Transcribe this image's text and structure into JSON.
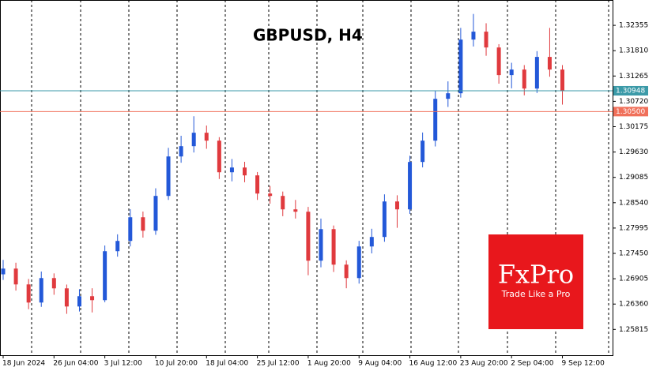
{
  "chart_data": {
    "type": "candlestick",
    "title": "GBPUSD, H4",
    "logo": {
      "name": "FxPro",
      "tagline": "Trade Like a Pro"
    },
    "up_color": "#2358d8",
    "down_color": "#e03a3e",
    "ylim": [
      1.2526,
      1.329
    ],
    "yticks": [
      1.25815,
      {
        "value": 1.2636,
        "label": "1.26360"
      },
      1.26905,
      {
        "value": 1.2745,
        "label": "1.27450"
      },
      1.27995,
      {
        "value": 1.2854,
        "label": "1.28540"
      },
      1.29085,
      {
        "value": 1.2963,
        "label": "1.29630"
      },
      1.30175,
      {
        "value": 1.3072,
        "label": "1.30720"
      },
      1.31265,
      {
        "value": 1.3181,
        "label": "1.31810"
      },
      1.32355
    ],
    "levels": [
      {
        "value": 1.30948,
        "label": "1.30948",
        "color": "#3b9aa8"
      },
      {
        "value": 1.305,
        "label": "1.30500",
        "color": "#f0705a"
      }
    ],
    "categories": [
      "18 Jun 2024",
      null,
      null,
      null,
      "26 Jun 04:00",
      null,
      null,
      null,
      "3 Jul 12:00",
      null,
      null,
      null,
      "10 Jul 20:00",
      null,
      null,
      null,
      "18 Jul 04:00",
      null,
      null,
      null,
      "25 Jul 12:00",
      null,
      null,
      null,
      "1 Aug 20:00",
      null,
      null,
      null,
      "9 Aug 04:00",
      null,
      null,
      null,
      "16 Aug 12:00",
      null,
      null,
      null,
      "23 Aug 20:00",
      null,
      null,
      null,
      "2 Sep 04:00",
      null,
      null,
      null,
      "9 Sep 12:00"
    ],
    "candles": [
      {
        "o": 1.27,
        "h": 1.2731,
        "l": 1.2688,
        "c": 1.27123
      },
      {
        "o": 1.27123,
        "h": 1.2725,
        "l": 1.2665,
        "c": 1.26783
      },
      {
        "o": 1.26783,
        "h": 1.269,
        "l": 1.2625,
        "c": 1.26393
      },
      {
        "o": 1.26393,
        "h": 1.2706,
        "l": 1.263,
        "c": 1.26919
      },
      {
        "o": 1.26919,
        "h": 1.2702,
        "l": 1.2656,
        "c": 1.26698
      },
      {
        "o": 1.26698,
        "h": 1.2678,
        "l": 1.2615,
        "c": 1.26308
      },
      {
        "o": 1.26308,
        "h": 1.2668,
        "l": 1.262,
        "c": 1.26529
      },
      {
        "o": 1.26529,
        "h": 1.267,
        "l": 1.2618,
        "c": 1.26444
      },
      {
        "o": 1.26444,
        "h": 1.2762,
        "l": 1.264,
        "c": 1.27497
      },
      {
        "o": 1.27497,
        "h": 1.2786,
        "l": 1.2738,
        "c": 1.27718
      },
      {
        "o": 1.27718,
        "h": 1.284,
        "l": 1.276,
        "c": 1.28227
      },
      {
        "o": 1.28227,
        "h": 1.2835,
        "l": 1.2779,
        "c": 1.27938
      },
      {
        "o": 1.27938,
        "h": 1.2885,
        "l": 1.2785,
        "c": 1.28686
      },
      {
        "o": 1.28686,
        "h": 1.2972,
        "l": 1.286,
        "c": 1.29535
      },
      {
        "o": 1.29535,
        "h": 1.2998,
        "l": 1.294,
        "c": 1.29756
      },
      {
        "o": 1.29756,
        "h": 1.304,
        "l": 1.2962,
        "c": 1.30045
      },
      {
        "o": 1.30045,
        "h": 1.302,
        "l": 1.297,
        "c": 1.29875
      },
      {
        "o": 1.29875,
        "h": 1.2995,
        "l": 1.2905,
        "c": 1.29195
      },
      {
        "o": 1.29195,
        "h": 1.2948,
        "l": 1.29,
        "c": 1.29297
      },
      {
        "o": 1.29297,
        "h": 1.2942,
        "l": 1.2898,
        "c": 1.29128
      },
      {
        "o": 1.29128,
        "h": 1.292,
        "l": 1.286,
        "c": 1.28737
      },
      {
        "o": 1.28737,
        "h": 1.289,
        "l": 1.2852,
        "c": 1.28686
      },
      {
        "o": 1.28686,
        "h": 1.2878,
        "l": 1.2825,
        "c": 1.28397
      },
      {
        "o": 1.28397,
        "h": 1.286,
        "l": 1.282,
        "c": 1.28346
      },
      {
        "o": 1.28346,
        "h": 1.2845,
        "l": 1.2698,
        "c": 1.27293
      },
      {
        "o": 1.27293,
        "h": 1.282,
        "l": 1.2715,
        "c": 1.27972
      },
      {
        "o": 1.27972,
        "h": 1.2805,
        "l": 1.2705,
        "c": 1.27208
      },
      {
        "o": 1.27208,
        "h": 1.273,
        "l": 1.267,
        "c": 1.26919
      },
      {
        "o": 1.26919,
        "h": 1.2772,
        "l": 1.268,
        "c": 1.27599
      },
      {
        "o": 1.27599,
        "h": 1.2798,
        "l": 1.2745,
        "c": 1.27803
      },
      {
        "o": 1.27803,
        "h": 1.2872,
        "l": 1.277,
        "c": 1.28567
      },
      {
        "o": 1.28567,
        "h": 1.287,
        "l": 1.28,
        "c": 1.28397
      },
      {
        "o": 1.28397,
        "h": 1.2955,
        "l": 1.283,
        "c": 1.29416
      },
      {
        "o": 1.29416,
        "h": 1.3005,
        "l": 1.293,
        "c": 1.29875
      },
      {
        "o": 1.29875,
        "h": 1.3095,
        "l": 1.2975,
        "c": 1.30775
      },
      {
        "o": 1.30775,
        "h": 1.3115,
        "l": 1.306,
        "c": 1.30894
      },
      {
        "o": 1.30894,
        "h": 1.323,
        "l": 1.308,
        "c": 1.32049
      },
      {
        "o": 1.32049,
        "h": 1.326,
        "l": 1.319,
        "c": 1.32219
      },
      {
        "o": 1.32219,
        "h": 1.324,
        "l": 1.317,
        "c": 1.31879
      },
      {
        "o": 1.31879,
        "h": 1.3195,
        "l": 1.311,
        "c": 1.31285
      },
      {
        "o": 1.31285,
        "h": 1.3155,
        "l": 1.31,
        "c": 1.31404
      },
      {
        "o": 1.31404,
        "h": 1.315,
        "l": 1.3085,
        "c": 1.30996
      },
      {
        "o": 1.30996,
        "h": 1.318,
        "l": 1.309,
        "c": 1.31676
      },
      {
        "o": 1.31676,
        "h": 1.323,
        "l": 1.3125,
        "c": 1.31404
      },
      {
        "o": 1.31404,
        "h": 1.315,
        "l": 1.3065,
        "c": 1.30948
      }
    ]
  }
}
